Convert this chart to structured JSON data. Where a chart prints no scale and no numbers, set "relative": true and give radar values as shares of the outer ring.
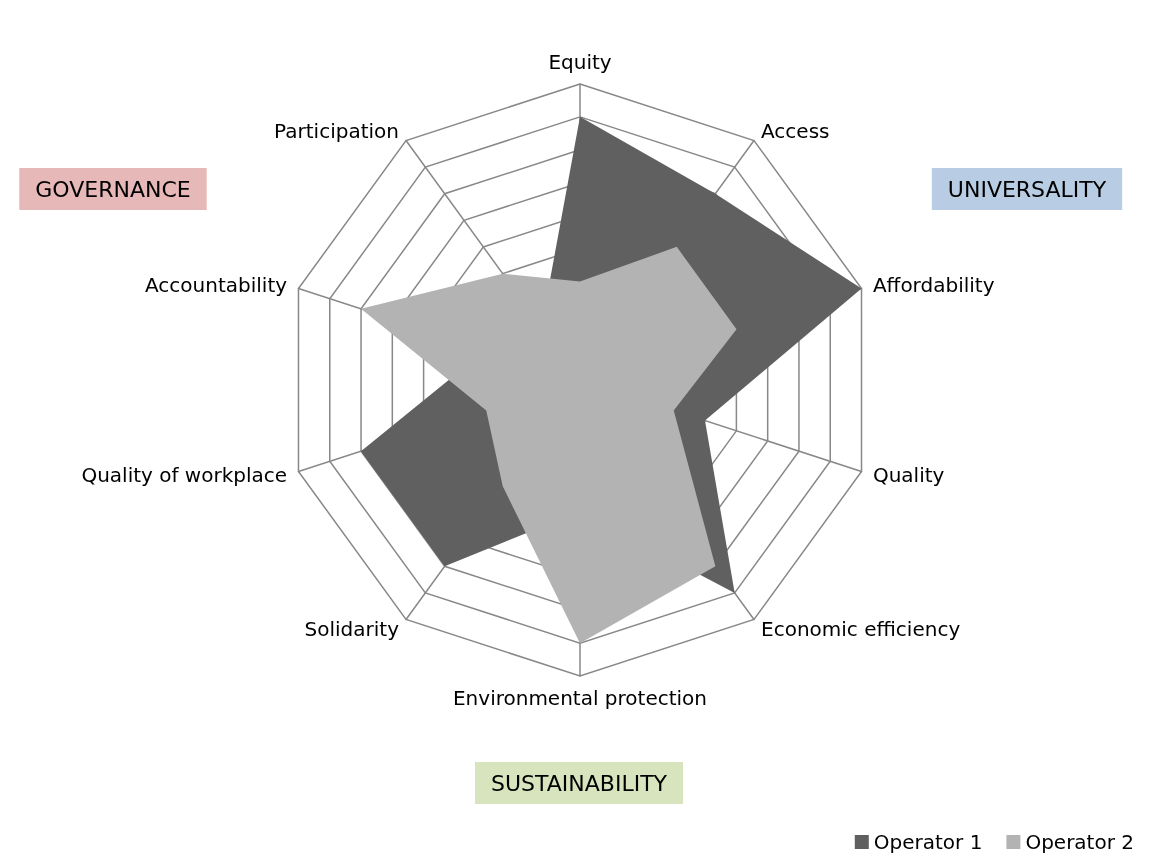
{
  "chart_data": {
    "type": "radar",
    "relative": true,
    "categories": [
      "Equity",
      "Access",
      "Affordability",
      "Quality",
      "Economic efficiency",
      "Environmental protection",
      "Solidarity",
      "Quality of workplace",
      "Accountability",
      "Participation"
    ],
    "series": [
      {
        "name": "Operator 1",
        "color": "#606060",
        "values": [
          0.889,
          0.778,
          1,
          0.444,
          0.889,
          0.444,
          0.778,
          0.778,
          0.333,
          0.222
        ]
      },
      {
        "name": "Operator 2",
        "color": "#b3b3b3",
        "values": [
          0.333,
          0.556,
          0.556,
          0.333,
          0.778,
          0.889,
          0.444,
          0.333,
          0.778,
          0.444
        ]
      }
    ],
    "annotations": [
      "GOVERNANCE",
      "UNIVERSALITY",
      "SUSTAINABILITY"
    ],
    "legend": "bottom right",
    "grid": true
  }
}
